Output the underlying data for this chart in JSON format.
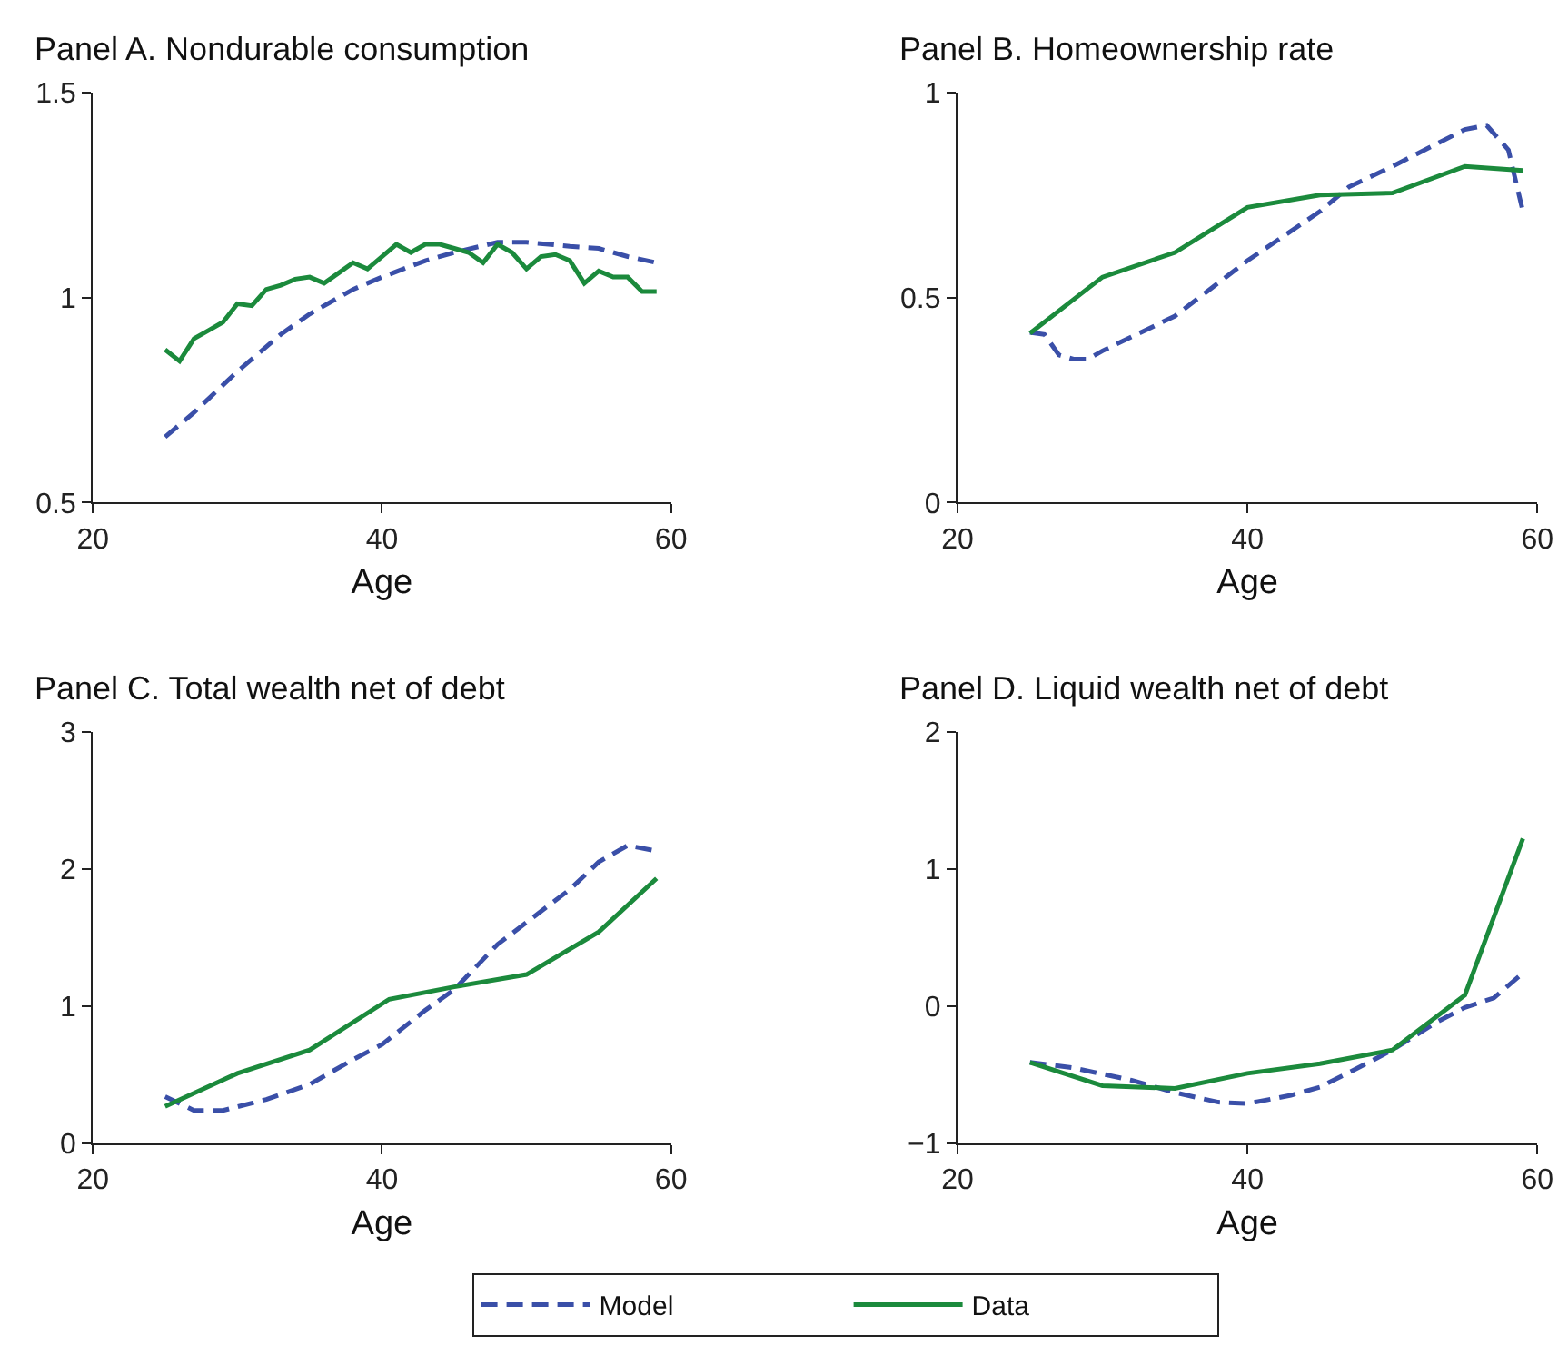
{
  "chart_data": [
    {
      "type": "line",
      "title": "Panel A. Nondurable consumption",
      "xlabel": "Age",
      "xlim": [
        20,
        60
      ],
      "xticks": [
        20,
        40,
        60
      ],
      "ylim": [
        0.5,
        1.5
      ],
      "yticks": [
        0.5,
        1,
        1.5
      ],
      "legend": "bottom",
      "grid": false,
      "series": [
        {
          "name": "Model",
          "color": "#3a4fa8",
          "line_style": "dashed",
          "x": [
            25,
            27,
            30,
            33,
            35,
            38,
            40,
            43,
            45,
            48,
            50,
            53,
            55,
            57,
            59
          ],
          "values": [
            0.66,
            0.72,
            0.82,
            0.91,
            0.96,
            1.02,
            1.05,
            1.09,
            1.11,
            1.135,
            1.135,
            1.125,
            1.12,
            1.1,
            1.085
          ]
        },
        {
          "name": "Data",
          "color": "#1b8a3c",
          "line_style": "solid",
          "x": [
            25,
            26,
            27,
            28,
            29,
            30,
            31,
            32,
            33,
            34,
            35,
            36,
            37,
            38,
            39,
            40,
            41,
            42,
            43,
            44,
            45,
            46,
            47,
            48,
            49,
            50,
            51,
            52,
            53,
            54,
            55,
            56,
            57,
            58,
            59
          ],
          "values": [
            0.873,
            0.845,
            0.9,
            0.92,
            0.94,
            0.985,
            0.98,
            1.02,
            1.03,
            1.045,
            1.05,
            1.035,
            1.06,
            1.085,
            1.07,
            1.1,
            1.13,
            1.11,
            1.13,
            1.13,
            1.12,
            1.11,
            1.085,
            1.13,
            1.11,
            1.07,
            1.1,
            1.105,
            1.09,
            1.035,
            1.065,
            1.05,
            1.05,
            1.015,
            1.015
          ]
        }
      ]
    },
    {
      "type": "line",
      "title": "Panel B. Homeownership rate",
      "xlabel": "Age",
      "xlim": [
        20,
        60
      ],
      "xticks": [
        20,
        40,
        60
      ],
      "ylim": [
        0,
        1
      ],
      "yticks": [
        0,
        0.5,
        1
      ],
      "legend": "bottom",
      "grid": false,
      "series": [
        {
          "name": "Model",
          "color": "#3a4fa8",
          "line_style": "dashed",
          "x": [
            25,
            26,
            27,
            28,
            29,
            30,
            35,
            40,
            45,
            47,
            50,
            55,
            56.5,
            58,
            59
          ],
          "values": [
            0.415,
            0.41,
            0.36,
            0.35,
            0.35,
            0.37,
            0.455,
            0.59,
            0.71,
            0.77,
            0.82,
            0.91,
            0.92,
            0.86,
            0.71
          ]
        },
        {
          "name": "Data",
          "color": "#1b8a3c",
          "line_style": "solid",
          "x": [
            25,
            30,
            35,
            40,
            45,
            50,
            55,
            59
          ],
          "values": [
            0.413,
            0.55,
            0.61,
            0.72,
            0.75,
            0.755,
            0.82,
            0.81
          ]
        }
      ]
    },
    {
      "type": "line",
      "title": "Panel C. Total wealth net of debt",
      "xlabel": "Age",
      "xlim": [
        20,
        60
      ],
      "xticks": [
        20,
        40,
        60
      ],
      "ylim": [
        0,
        3
      ],
      "yticks": [
        0,
        1,
        2,
        3
      ],
      "legend": "bottom",
      "grid": false,
      "series": [
        {
          "name": "Model",
          "color": "#3a4fa8",
          "line_style": "dashed",
          "x": [
            25,
            27,
            29,
            32,
            35,
            38,
            40,
            43,
            45,
            48,
            50,
            53,
            55,
            57,
            59
          ],
          "values": [
            0.34,
            0.24,
            0.24,
            0.32,
            0.43,
            0.61,
            0.72,
            0.97,
            1.12,
            1.45,
            1.61,
            1.85,
            2.05,
            2.17,
            2.13
          ]
        },
        {
          "name": "Data",
          "color": "#1b8a3c",
          "line_style": "solid",
          "x": [
            25,
            30,
            35,
            40.5,
            45,
            50,
            55,
            59
          ],
          "values": [
            0.27,
            0.51,
            0.68,
            1.05,
            1.14,
            1.23,
            1.54,
            1.93
          ]
        }
      ]
    },
    {
      "type": "line",
      "title": "Panel D. Liquid wealth net of debt",
      "xlabel": "Age",
      "xlim": [
        20,
        60
      ],
      "xticks": [
        20,
        40,
        60
      ],
      "ylim": [
        -1,
        2
      ],
      "yticks": [
        {
          "value": -1,
          "label": "−1"
        },
        0,
        1,
        2
      ],
      "legend": "bottom",
      "grid": false,
      "series": [
        {
          "name": "Model",
          "color": "#3a4fa8",
          "line_style": "dashed",
          "x": [
            25,
            28,
            32,
            35,
            38,
            40,
            43,
            45,
            48,
            50,
            53,
            55,
            57,
            59
          ],
          "values": [
            -0.41,
            -0.45,
            -0.54,
            -0.63,
            -0.7,
            -0.71,
            -0.65,
            -0.59,
            -0.43,
            -0.32,
            -0.12,
            -0.01,
            0.06,
            0.24
          ]
        },
        {
          "name": "Data",
          "color": "#1b8a3c",
          "line_style": "solid",
          "x": [
            25,
            30,
            35,
            40,
            45,
            50,
            55,
            59
          ],
          "values": [
            -0.41,
            -0.58,
            -0.6,
            -0.49,
            -0.42,
            -0.32,
            0.08,
            1.22
          ]
        }
      ]
    }
  ]
}
